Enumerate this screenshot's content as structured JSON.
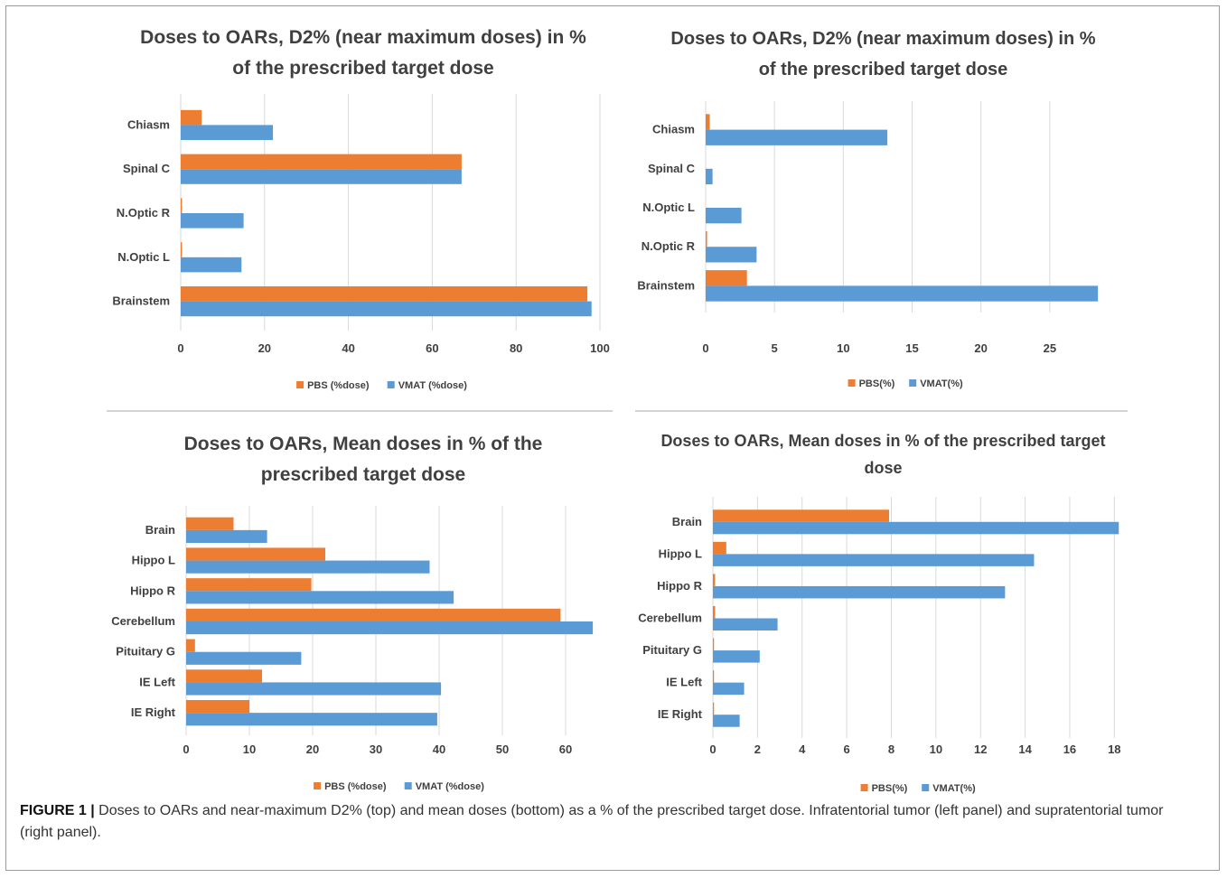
{
  "colors": {
    "pbs": "#ED7D31",
    "vmat": "#5B9BD5",
    "grid": "#d9d9d9",
    "text": "#404040"
  },
  "caption": {
    "label": "FIGURE 1 |",
    "text": " Doses to OARs and near-maximum D2% (top) and mean doses (bottom) as a % of the prescribed target dose. Infratentorial tumor (left panel) and supratentorial tumor (right panel)."
  },
  "chart_data": [
    {
      "type": "bar",
      "orientation": "horizontal",
      "title_lines": [
        "Doses to OARs, D2% (near maximum doses) in %",
        "of the prescribed target dose"
      ],
      "categories": [
        "Chiasm",
        "Spinal C",
        "N.Optic R",
        "N.Optic L",
        "Brainstem"
      ],
      "series": [
        {
          "name": "PBS (%dose)",
          "values": [
            5,
            67,
            0.3,
            0.3,
            97
          ]
        },
        {
          "name": "VMAT (%dose)",
          "values": [
            22,
            67,
            15,
            14.5,
            98
          ]
        }
      ],
      "xlim": [
        0,
        100
      ],
      "xticks": [
        0,
        20,
        40,
        60,
        80,
        100
      ],
      "grid": true,
      "legend": "bottom"
    },
    {
      "type": "bar",
      "orientation": "horizontal",
      "title_lines": [
        "Doses to OARs, D2% (near maximum doses) in %",
        "of the prescribed target dose"
      ],
      "categories": [
        "Chiasm",
        "Spinal C",
        "N.Optic L",
        "N.Optic R",
        "Brainstem"
      ],
      "series": [
        {
          "name": "PBS(%)",
          "values": [
            0.3,
            0,
            0,
            0.1,
            3
          ]
        },
        {
          "name": "VMAT(%)",
          "values": [
            13.2,
            0.5,
            2.6,
            3.7,
            28.5
          ]
        }
      ],
      "xlim": [
        0,
        30
      ],
      "xticks": [
        0,
        5,
        10,
        15,
        20,
        25
      ],
      "grid": true,
      "legend": "bottom"
    },
    {
      "type": "bar",
      "orientation": "horizontal",
      "title_lines": [
        "Doses to OARs, Mean doses in % of the",
        "prescribed target dose"
      ],
      "categories": [
        "Brain",
        "Hippo L",
        "Hippo R",
        "Cerebellum",
        "Pituitary G",
        "IE Left",
        "IE Right"
      ],
      "series": [
        {
          "name": "PBS (%dose)",
          "values": [
            7.5,
            22,
            19.8,
            59.2,
            1.4,
            12,
            10
          ]
        },
        {
          "name": "VMAT (%dose)",
          "values": [
            12.8,
            38.5,
            42.3,
            64.3,
            18.2,
            40.3,
            39.7
          ]
        }
      ],
      "xlim": [
        0,
        70
      ],
      "xticks": [
        0,
        10,
        20,
        30,
        40,
        50,
        60
      ],
      "grid": true,
      "legend": "bottom"
    },
    {
      "type": "bar",
      "orientation": "horizontal",
      "title_lines": [
        "Doses to OARs, Mean doses in % of the prescribed target",
        "dose"
      ],
      "categories": [
        "Brain",
        "Hippo L",
        "Hippo R",
        "Cerebellum",
        "Pituitary G",
        "IE Left",
        "IE Right"
      ],
      "series": [
        {
          "name": "PBS(%)",
          "values": [
            7.9,
            0.6,
            0.1,
            0.1,
            0.05,
            0.05,
            0.05
          ]
        },
        {
          "name": "VMAT(%)",
          "values": [
            18.2,
            14.4,
            13.1,
            2.9,
            2.1,
            1.4,
            1.2
          ]
        }
      ],
      "xlim": [
        0,
        19
      ],
      "xticks": [
        0,
        2,
        4,
        6,
        8,
        10,
        12,
        14,
        16,
        18
      ],
      "grid": true,
      "legend": "bottom"
    }
  ]
}
